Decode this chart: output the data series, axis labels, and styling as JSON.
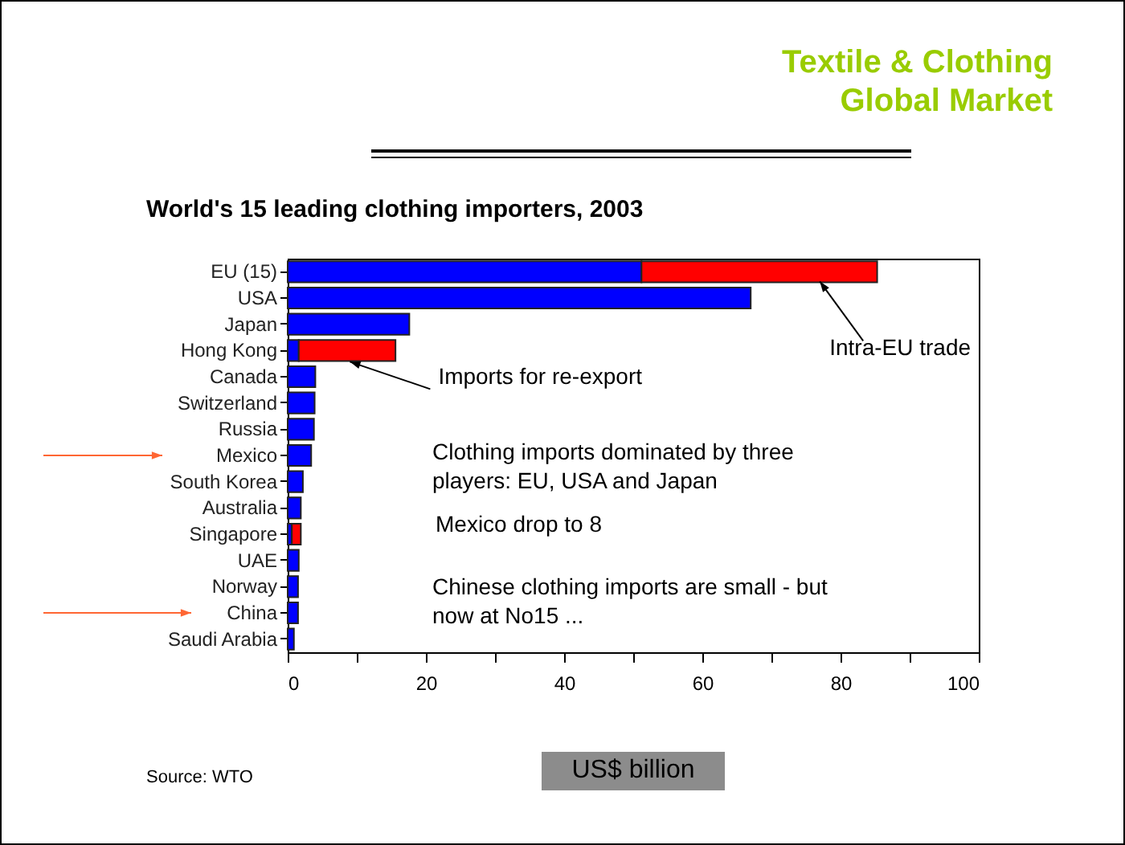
{
  "chart_data": {
    "type": "bar",
    "orientation": "horizontal",
    "stacked": true,
    "title": "Textile & Clothing Global Market",
    "subtitle": "World's 15 leading clothing importers, 2003",
    "xlabel": "US$ billion",
    "categories": [
      "EU (15)",
      "USA",
      "Japan",
      "Hong Kong",
      "Canada",
      "Switzerland",
      "Russia",
      "Mexico",
      "South Korea",
      "Australia",
      "Singapore",
      "UAE",
      "Norway",
      "China",
      "Saudi Arabia"
    ],
    "series": [
      {
        "color": "#0000ff",
        "values": [
          51.2,
          67,
          17.6,
          1.6,
          4.0,
          3.9,
          3.8,
          3.4,
          2.2,
          1.9,
          0.6,
          1.6,
          1.5,
          1.5,
          0.9
        ]
      },
      {
        "color": "#ff0000",
        "values": [
          34.1,
          null,
          null,
          14.0,
          null,
          null,
          null,
          null,
          null,
          null,
          1.3,
          null,
          null,
          null,
          null
        ]
      }
    ],
    "xlim": [
      0,
      100
    ],
    "xticks": [
      0,
      {
        "value": 10,
        "label": null
      },
      20,
      {
        "value": 30,
        "label": null
      },
      40,
      {
        "value": 50,
        "label": null
      },
      60,
      {
        "value": 70,
        "label": null
      },
      80,
      {
        "value": 90,
        "label": null
      },
      100
    ],
    "grid": false,
    "annotations": [
      {
        "text": "Intra-EU trade",
        "x": 77,
        "y": "EU (15)"
      },
      {
        "text": "Imports for re-export",
        "x": 9,
        "y": "Hong Kong"
      },
      "Clothing imports dominated by three players: EU, USA and Japan",
      "Mexico drop to  8",
      "Chinese clothing imports are small - but now at No15 ...",
      "Source: WTO"
    ]
  }
}
